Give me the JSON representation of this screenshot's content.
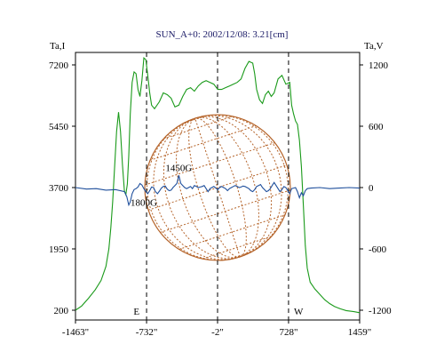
{
  "chart_data": {
    "type": "line",
    "title": "SUN_A+0: 2002/12/08: 3.21[cm]",
    "xlabel": "",
    "ylabel_left": "Ta,I",
    "ylabel_right": "Ta,V",
    "xlim": [
      -1463,
      1459
    ],
    "ylim_left": [
      200,
      7200
    ],
    "ylim_right": [
      -1200,
      1200
    ],
    "x_ticks": [
      "-1463\"",
      "-732\"",
      "-2\"",
      "728\"",
      "1459\""
    ],
    "x_tick_values": [
      -1463,
      -732,
      -2,
      728,
      1459
    ],
    "y_ticks_left": [
      "200",
      "1950",
      "3700",
      "5450",
      "7200"
    ],
    "y_tick_values_left": [
      200,
      1950,
      3700,
      5450,
      7200
    ],
    "y_ticks_right": [
      "-1200",
      "-600",
      "0",
      "600",
      "1200"
    ],
    "y_tick_values_right": [
      -1200,
      -600,
      0,
      600,
      1200
    ],
    "grid": false,
    "vertical_markers": [
      -732,
      -2,
      728
    ],
    "limb_labels": {
      "east": "E",
      "west": "W"
    },
    "annotations": [
      {
        "text": "1450G",
        "x": -400,
        "y_right": 160
      },
      {
        "text": "1800G",
        "x": -760,
        "y_right": -180
      }
    ],
    "colors": {
      "stokes_I": "#1a9a1a",
      "stokes_V": "#1f4f9c",
      "disk": "#b5642a",
      "title": "#1a1a66"
    },
    "series": [
      {
        "axis": "left",
        "x": [
          -1463,
          -1400,
          -1330,
          -1260,
          -1200,
          -1150,
          -1120,
          -1100,
          -1080,
          -1060,
          -1040,
          -1020,
          -1000,
          -980,
          -960,
          -945,
          -930,
          -915,
          -900,
          -880,
          -860,
          -840,
          -820,
          -800,
          -780,
          -760,
          -740,
          -720,
          -700,
          -680,
          -650,
          -600,
          -560,
          -520,
          -480,
          -440,
          -400,
          -360,
          -320,
          -280,
          -240,
          -200,
          -160,
          -120,
          -80,
          -40,
          0,
          40,
          80,
          120,
          160,
          200,
          240,
          280,
          320,
          360,
          380,
          400,
          430,
          460,
          490,
          520,
          550,
          580,
          620,
          660,
          700,
          740,
          760,
          780,
          800,
          820,
          840,
          860,
          880,
          900,
          920,
          950,
          1000,
          1050,
          1100,
          1150,
          1200,
          1260,
          1320,
          1400,
          1459
        ],
        "values": [
          200,
          320,
          540,
          780,
          1050,
          1450,
          1950,
          2550,
          3300,
          4300,
          5300,
          5850,
          5300,
          4350,
          3600,
          3500,
          3800,
          4600,
          5800,
          6700,
          7000,
          6950,
          6500,
          6300,
          6750,
          7400,
          7350,
          6900,
          6400,
          6050,
          5950,
          6150,
          6400,
          6350,
          6250,
          6000,
          6050,
          6300,
          6500,
          6550,
          6450,
          6600,
          6700,
          6750,
          6700,
          6650,
          6500,
          6500,
          6550,
          6600,
          6650,
          6700,
          6800,
          7100,
          7300,
          7250,
          6950,
          6500,
          6200,
          6100,
          6350,
          6450,
          6300,
          6400,
          6800,
          6900,
          6650,
          6700,
          6050,
          5800,
          5600,
          5500,
          5050,
          4300,
          3200,
          2050,
          1400,
          1000,
          800,
          650,
          500,
          390,
          310,
          240,
          190,
          160,
          130
        ]
      },
      {
        "axis": "right",
        "x": [
          -1463,
          -1350,
          -1250,
          -1150,
          -1050,
          -960,
          -935,
          -915,
          -900,
          -880,
          -860,
          -840,
          -820,
          -800,
          -780,
          -760,
          -740,
          -720,
          -700,
          -680,
          -660,
          -640,
          -620,
          -600,
          -580,
          -560,
          -540,
          -520,
          -500,
          -480,
          -460,
          -440,
          -420,
          -400,
          -380,
          -360,
          -340,
          -320,
          -300,
          -280,
          -260,
          -240,
          -220,
          -200,
          -180,
          -160,
          -140,
          -120,
          -100,
          -80,
          -60,
          -40,
          -20,
          0,
          20,
          40,
          60,
          80,
          100,
          120,
          140,
          160,
          180,
          200,
          220,
          240,
          260,
          280,
          300,
          320,
          340,
          360,
          380,
          400,
          420,
          440,
          460,
          480,
          500,
          520,
          540,
          560,
          580,
          600,
          620,
          640,
          660,
          680,
          700,
          720,
          740,
          760,
          780,
          800,
          820,
          840,
          860,
          880,
          900,
          920,
          960,
          1050,
          1150,
          1250,
          1350,
          1459
        ],
        "values": [
          0,
          -15,
          -10,
          -25,
          -20,
          -40,
          -90,
          -170,
          -140,
          -60,
          -20,
          -10,
          5,
          40,
          25,
          -10,
          -40,
          -60,
          -30,
          5,
          0,
          -40,
          -60,
          -35,
          -5,
          10,
          15,
          -15,
          -30,
          -25,
          0,
          20,
          40,
          120,
          40,
          20,
          0,
          -10,
          0,
          10,
          -10,
          20,
          10,
          0,
          5,
          10,
          20,
          -10,
          -40,
          -10,
          0,
          10,
          -5,
          -20,
          0,
          10,
          0,
          -10,
          -30,
          -10,
          0,
          10,
          20,
          10,
          0,
          5,
          15,
          10,
          0,
          -10,
          -30,
          -40,
          -20,
          10,
          20,
          30,
          0,
          -20,
          -40,
          -30,
          -10,
          20,
          50,
          20,
          -10,
          -40,
          -20,
          10,
          0,
          -30,
          -60,
          -10,
          -5,
          0,
          -40,
          -100,
          -50,
          -80,
          -30,
          -10,
          -5,
          0,
          -10,
          -5,
          0,
          -5
        ]
      }
    ]
  }
}
